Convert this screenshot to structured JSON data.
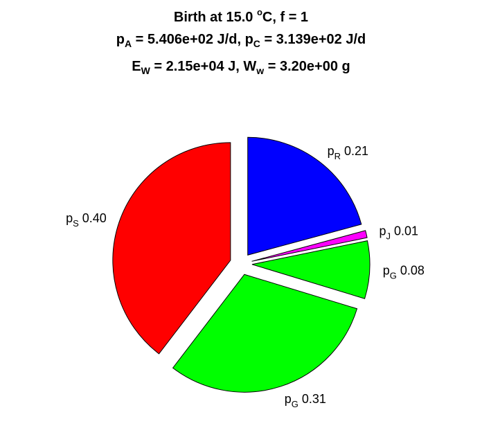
{
  "title": {
    "line1": {
      "prefix": "Birth at 15.0 ",
      "sup": "o",
      "suffix": "C, f = 1"
    },
    "line2": {
      "a_sym": "p",
      "a_sub": "A",
      "a_val": " = 5.406e+02 J/d, ",
      "c_sym": "p",
      "c_sub": "C",
      "c_val": " = 3.139e+02 J/d"
    },
    "line3": {
      "e_sym": "E",
      "e_sub": "W",
      "e_val": " = 2.15e+04 J, ",
      "w_sym": "W",
      "w_sub": "w",
      "w_val": " = 3.20e+00 g"
    }
  },
  "chart_data": {
    "type": "pie",
    "slices": [
      {
        "sym": "p",
        "sub": "R",
        "value": 0.21,
        "label": "0.21",
        "color": "#0000ff"
      },
      {
        "sym": "p",
        "sub": "J",
        "value": 0.01,
        "label": "0.01",
        "color": "#ff00ff"
      },
      {
        "sym": "p",
        "sub": "G",
        "value": 0.08,
        "label": "0.08",
        "color": "#00ff00"
      },
      {
        "sym": "p",
        "sub": "G",
        "value": 0.31,
        "label": "0.31",
        "color": "#00ff00"
      },
      {
        "sym": "p",
        "sub": "S",
        "value": 0.4,
        "label": "0.40",
        "color": "#ff0000"
      }
    ],
    "exploded": true
  }
}
